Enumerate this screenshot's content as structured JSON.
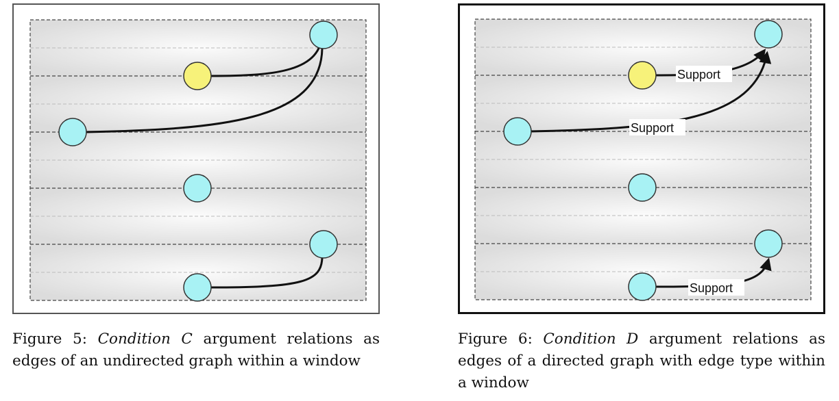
{
  "figures": [
    {
      "number_label": "Figure 5:",
      "condition_name": "Condition C",
      "caption_rest": "argument relations as edges of an undirected graph within a window",
      "directed": false,
      "edge_labels": []
    },
    {
      "number_label": "Figure 6:",
      "condition_name": "Condition D",
      "caption_rest": "argument relations as edges of a directed graph with edge type within a window",
      "directed": true,
      "edge_labels": [
        "Support",
        "Support",
        "Support"
      ]
    }
  ],
  "colors": {
    "node_fill": "#a8f2f4",
    "node_highlight_fill": "#f7f27a",
    "node_stroke": "#333333",
    "edge": "#111111",
    "row_background": "#e4e4e4"
  }
}
